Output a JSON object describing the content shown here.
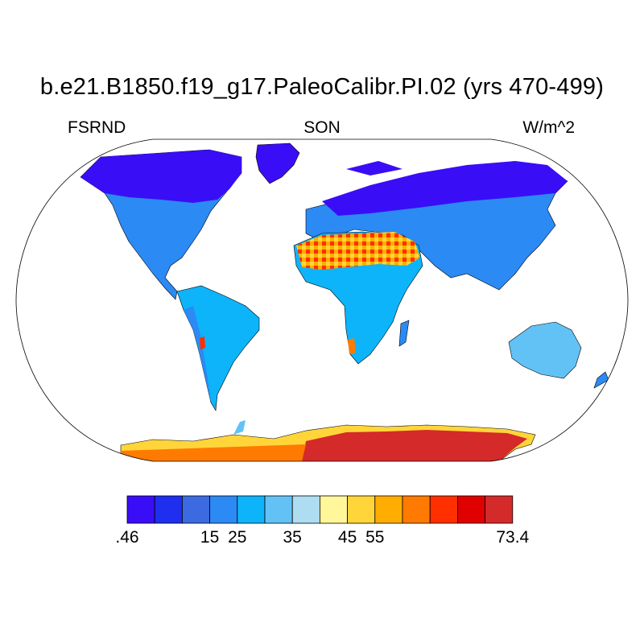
{
  "figure": {
    "title": "b.e21.B1850.f19_g17.PaleoCalibr.PI.02 (yrs 470-499)",
    "left_label": "FSRND",
    "center_label": "SON",
    "right_label": "W/m^2"
  },
  "colorbar": {
    "colors": [
      "#3a0df7",
      "#1e2ff0",
      "#3c6ae0",
      "#2b8af4",
      "#0db4fa",
      "#62c2f5",
      "#aedcf0",
      "#fff799",
      "#ffd53a",
      "#ffad00",
      "#ff7a00",
      "#ff2f00",
      "#e00000",
      "#d42a2a"
    ],
    "tick_labels": [
      {
        "text": ".46",
        "boundary": 0
      },
      {
        "text": "15",
        "boundary": 2
      },
      {
        "text": "25",
        "boundary": 3
      },
      {
        "text": "35",
        "boundary": 5
      },
      {
        "text": "45",
        "boundary": 7
      },
      {
        "text": "55",
        "boundary": 8
      },
      {
        "text": "73.4",
        "boundary": 11
      }
    ]
  }
}
